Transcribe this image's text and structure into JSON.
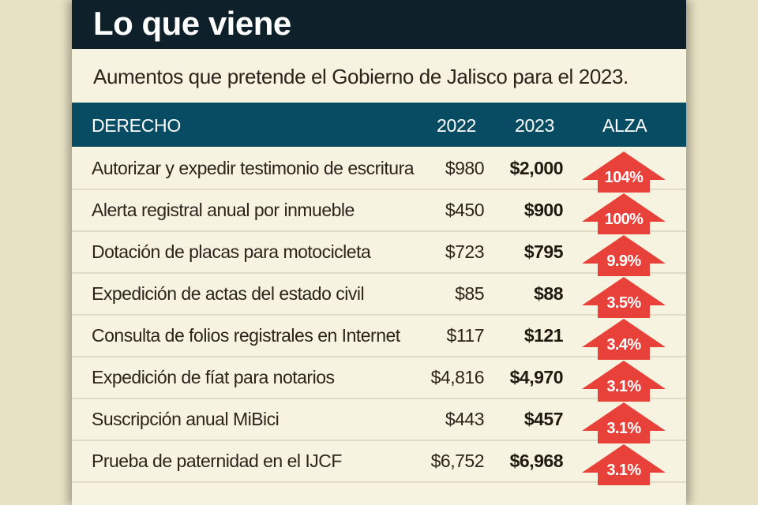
{
  "title": "Lo que viene",
  "subtitle": "Aumentos que pretende el Gobierno de Jalisco para el 2023.",
  "colors": {
    "title_bg": "#0e2029",
    "header_bg": "#074c63",
    "arrow": "#e8413a",
    "panel": "#f7f3e1"
  },
  "chart_data": {
    "type": "table",
    "columns": [
      "DERECHO",
      "2022",
      "2023",
      "ALZA"
    ],
    "rows": [
      {
        "derecho": "Autorizar y expedir testimonio de escritura",
        "y2022": "$980",
        "y2023": "$2,000",
        "alza": "104%"
      },
      {
        "derecho": "Alerta registral anual por inmueble",
        "y2022": "$450",
        "y2023": "$900",
        "alza": "100%"
      },
      {
        "derecho": "Dotación de placas para motocicleta",
        "y2022": "$723",
        "y2023": "$795",
        "alza": "9.9%"
      },
      {
        "derecho": "Expedición de actas del estado civil",
        "y2022": "$85",
        "y2023": "$88",
        "alza": "3.5%"
      },
      {
        "derecho": "Consulta de folios registrales en Internet",
        "y2022": "$117",
        "y2023": "$121",
        "alza": "3.4%"
      },
      {
        "derecho": "Expedición de fíat para notarios",
        "y2022": "$4,816",
        "y2023": "$4,970",
        "alza": "3.1%"
      },
      {
        "derecho": "Suscripción anual MiBici",
        "y2022": "$443",
        "y2023": "$457",
        "alza": "3.1%"
      },
      {
        "derecho": "Prueba de paternidad en el IJCF",
        "y2022": "$6,752",
        "y2023": "$6,968",
        "alza": "3.1%"
      }
    ]
  }
}
